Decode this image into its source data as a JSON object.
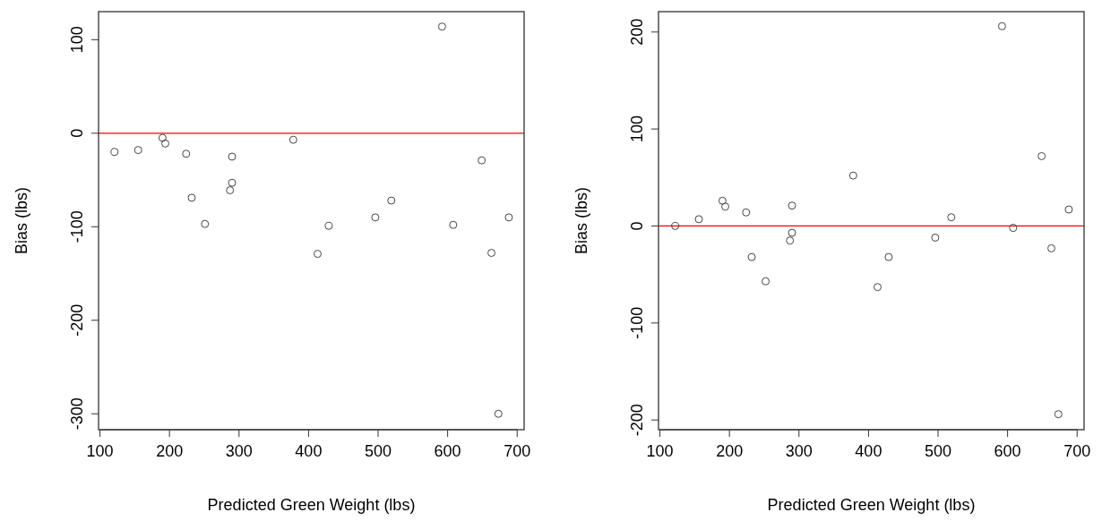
{
  "chart_data": [
    {
      "type": "scatter",
      "xlabel": "Predicted Green Weight (lbs)",
      "ylabel": "Bias (lbs)",
      "xlim": [
        98,
        710
      ],
      "ylim": [
        -317,
        130
      ],
      "xticks": [
        100,
        200,
        300,
        400,
        500,
        600,
        700
      ],
      "yticks": [
        -300,
        -200,
        -100,
        0,
        100
      ],
      "marker": "circle",
      "grid": false,
      "ref_lines": [
        {
          "axis": "y",
          "value": 0,
          "color": "#ff0000"
        }
      ],
      "series": [
        {
          "color": "#444444",
          "x": [
            121,
            155,
            190,
            194,
            224,
            232,
            251,
            287,
            290,
            290,
            378,
            413,
            429,
            496,
            519,
            592,
            608,
            649,
            663,
            673,
            688
          ],
          "values": [
            -20,
            -18,
            -5,
            -11,
            -22,
            -69,
            -97,
            -61,
            -53,
            -25,
            -7,
            -129,
            -99,
            -90,
            -72,
            114,
            -98,
            -29,
            -128,
            -300,
            -90
          ]
        }
      ]
    },
    {
      "type": "scatter",
      "xlabel": "Predicted Green Weight (lbs)",
      "ylabel": "Bias (lbs)",
      "xlim": [
        98,
        710
      ],
      "ylim": [
        -210,
        221
      ],
      "xticks": [
        100,
        200,
        300,
        400,
        500,
        600,
        700
      ],
      "yticks": [
        -200,
        -100,
        0,
        100,
        200
      ],
      "marker": "circle",
      "grid": false,
      "ref_lines": [
        {
          "axis": "y",
          "value": 0,
          "color": "#ff0000"
        }
      ],
      "series": [
        {
          "color": "#444444",
          "x": [
            122,
            156,
            190,
            194,
            224,
            232,
            252,
            287,
            290,
            290,
            378,
            413,
            429,
            496,
            519,
            592,
            608,
            649,
            663,
            673,
            688
          ],
          "values": [
            0,
            7,
            26,
            20,
            14,
            -32,
            -57,
            -15,
            -7,
            21,
            52,
            -63,
            -32,
            -12,
            9,
            206,
            -2,
            72,
            -23,
            -194,
            17
          ]
        }
      ]
    }
  ]
}
